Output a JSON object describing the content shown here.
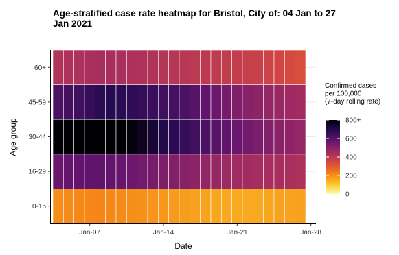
{
  "chart_data": {
    "type": "heatmap",
    "title": "Age-stratified case rate heatmap for Bristol, City of: 04 Jan to 27 Jan 2021",
    "xlabel": "Date",
    "ylabel": "Age group",
    "x_dates": [
      "2021-01-04",
      "2021-01-05",
      "2021-01-06",
      "2021-01-07",
      "2021-01-08",
      "2021-01-09",
      "2021-01-10",
      "2021-01-11",
      "2021-01-12",
      "2021-01-13",
      "2021-01-14",
      "2021-01-15",
      "2021-01-16",
      "2021-01-17",
      "2021-01-18",
      "2021-01-19",
      "2021-01-20",
      "2021-01-21",
      "2021-01-22",
      "2021-01-23",
      "2021-01-24",
      "2021-01-25",
      "2021-01-26",
      "2021-01-27"
    ],
    "x_ticks": [
      {
        "date": "2021-01-07",
        "label": "Jan-07"
      },
      {
        "date": "2021-01-14",
        "label": "Jan-14"
      },
      {
        "date": "2021-01-21",
        "label": "Jan-21"
      },
      {
        "date": "2021-01-28",
        "label": "Jan-28"
      }
    ],
    "y_categories": [
      "0-15",
      "16-29",
      "30-44",
      "45-59",
      "60+"
    ],
    "values": [
      [
        200,
        205,
        210,
        212,
        215,
        210,
        205,
        200,
        195,
        190,
        185,
        180,
        175,
        170,
        165,
        160,
        158,
        155,
        155,
        158,
        160,
        165,
        168,
        170
      ],
      [
        560,
        570,
        575,
        580,
        580,
        575,
        565,
        555,
        545,
        535,
        525,
        515,
        505,
        495,
        485,
        475,
        465,
        455,
        450,
        445,
        440,
        440,
        435,
        430
      ],
      [
        800,
        820,
        830,
        840,
        850,
        845,
        820,
        790,
        760,
        730,
        700,
        680,
        660,
        640,
        620,
        600,
        580,
        560,
        545,
        530,
        515,
        500,
        490,
        480
      ],
      [
        620,
        630,
        640,
        660,
        680,
        690,
        680,
        670,
        660,
        650,
        640,
        630,
        620,
        600,
        580,
        560,
        540,
        520,
        505,
        490,
        480,
        470,
        460,
        450
      ],
      [
        420,
        425,
        430,
        435,
        440,
        440,
        435,
        430,
        425,
        420,
        415,
        410,
        405,
        400,
        395,
        390,
        385,
        380,
        375,
        370,
        360,
        350,
        340,
        330
      ]
    ],
    "colorbar": {
      "title_lines": [
        "Confirmed cases",
        "per 100,000",
        "(7-day rolling rate)"
      ],
      "min": 0,
      "max": 800,
      "ticks": [
        {
          "value": 800,
          "label": "800+"
        },
        {
          "value": 600,
          "label": "600"
        },
        {
          "value": 400,
          "label": "400"
        },
        {
          "value": 200,
          "label": "200"
        },
        {
          "value": 0,
          "label": "0"
        }
      ],
      "colors": [
        "#fcffa4",
        "#fac228",
        "#f57d15",
        "#d44842",
        "#9f2a63",
        "#65156e",
        "#280b53",
        "#000004"
      ]
    },
    "grid": true
  }
}
